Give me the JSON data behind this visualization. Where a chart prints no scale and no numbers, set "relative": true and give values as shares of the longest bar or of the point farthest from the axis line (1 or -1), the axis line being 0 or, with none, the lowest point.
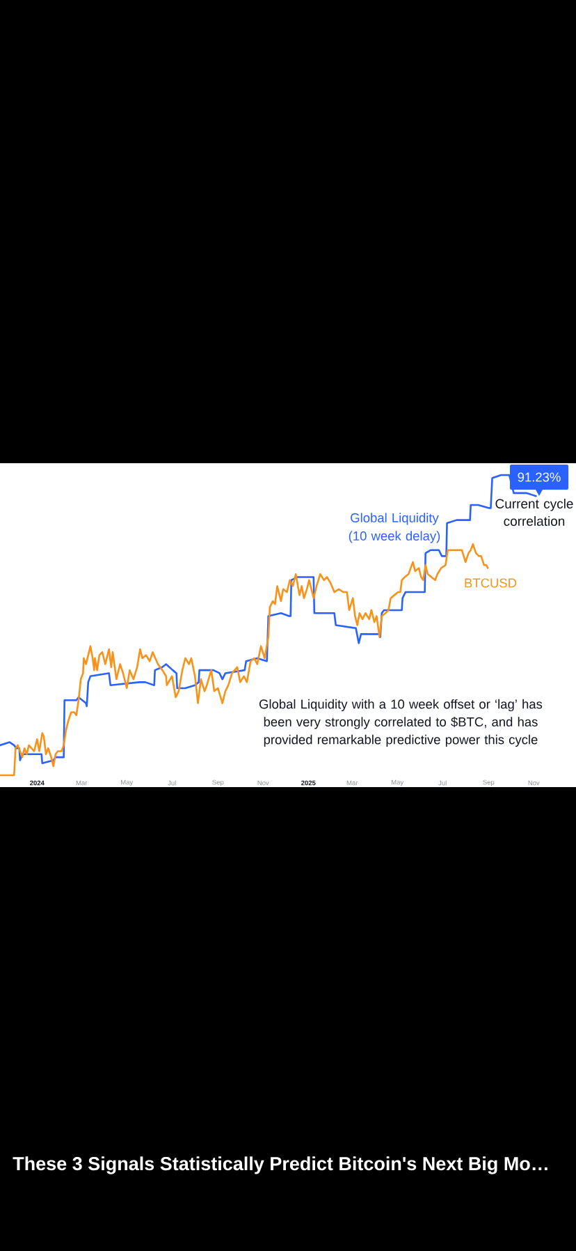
{
  "chart_data": {
    "type": "line",
    "title": "These 3 Signals Statistically Predict Bitcoin's Next Big Mo…",
    "annotations": [
      "91.23%",
      "Current cycle correlation",
      "Global Liquidity with a 10 week offset or ‘lag’ has been very strongly correlated to $BTC, and has provided remarkable predictive power this cycle"
    ],
    "relative": true,
    "xlim": [
      "2023-11-12",
      "2025-12-28"
    ],
    "xticks": [
      {
        "value": "2024-01-01",
        "label": "2024"
      },
      {
        "value": "2024-03-01",
        "label": "Mar"
      },
      {
        "value": "2024-05-01",
        "label": "May"
      },
      {
        "value": "2024-07-01",
        "label": "Jul"
      },
      {
        "value": "2024-09-01",
        "label": "Sep"
      },
      {
        "value": "2024-11-01",
        "label": "Nov"
      },
      {
        "value": "2025-01-01",
        "label": "2025"
      },
      {
        "value": "2025-03-01",
        "label": "Mar"
      },
      {
        "value": "2025-05-01",
        "label": "May"
      },
      {
        "value": "2025-07-01",
        "label": "Jul"
      },
      {
        "value": "2025-09-01",
        "label": "Sep"
      },
      {
        "value": "2025-11-01",
        "label": "Nov"
      }
    ],
    "series": [
      {
        "name": "Global Liquidity (10 week delay)",
        "color": "#2962ff",
        "x": [
          "2023-11-12",
          "2023-11-25",
          "2023-12-01",
          "2023-12-04",
          "2023-12-08",
          "2023-12-09",
          "2023-12-12",
          "2023-12-26",
          "2024-01-07",
          "2024-01-08",
          "2024-01-23",
          "2024-01-26",
          "2024-02-06",
          "2024-02-07",
          "2024-02-23",
          "2024-02-26",
          "2024-03-07",
          "2024-03-08",
          "2024-03-10",
          "2024-03-13",
          "2024-04-07",
          "2024-04-09",
          "2024-05-18",
          "2024-05-26",
          "2024-06-07",
          "2024-06-08",
          "2024-06-18",
          "2024-06-23",
          "2024-07-02",
          "2024-07-07",
          "2024-07-08",
          "2024-07-19",
          "2024-08-01",
          "2024-08-06",
          "2024-08-07",
          "2024-08-26",
          "2024-09-03",
          "2024-09-07",
          "2024-09-11",
          "2024-10-07",
          "2024-10-09",
          "2024-10-24",
          "2024-11-06",
          "2024-11-08",
          "2024-11-25",
          "2024-12-06",
          "2024-12-08",
          "2024-12-09",
          "2024-12-17",
          "2025-01-08",
          "2025-01-09",
          "2025-02-05",
          "2025-02-07",
          "2025-03-06",
          "2025-03-10",
          "2025-03-13",
          "2025-04-07",
          "2025-04-08",
          "2025-04-10",
          "2025-04-13",
          "2025-05-07",
          "2025-05-08",
          "2025-05-12",
          "2025-06-07",
          "2025-06-08",
          "2025-06-15",
          "2025-06-26",
          "2025-06-30",
          "2025-07-06",
          "2025-07-07",
          "2025-07-20",
          "2025-08-07",
          "2025-08-08",
          "2025-08-18",
          "2025-09-02",
          "2025-09-04",
          "2025-09-06",
          "2025-09-18",
          "2025-09-29",
          "2025-10-05",
          "2025-10-22",
          "2025-11-04"
        ],
        "values": [
          0.1,
          0.11,
          0.1,
          0.09,
          0.09,
          0.05,
          0.07,
          0.07,
          0.07,
          0.04,
          0.05,
          0.06,
          0.06,
          0.25,
          0.25,
          0.26,
          0.24,
          0.23,
          0.31,
          0.33,
          0.34,
          0.3,
          0.31,
          0.31,
          0.3,
          0.35,
          0.36,
          0.37,
          0.35,
          0.34,
          0.29,
          0.29,
          0.3,
          0.31,
          0.35,
          0.35,
          0.34,
          0.32,
          0.34,
          0.35,
          0.38,
          0.39,
          0.38,
          0.53,
          0.54,
          0.53,
          0.53,
          0.65,
          0.66,
          0.66,
          0.54,
          0.54,
          0.5,
          0.49,
          0.44,
          0.47,
          0.47,
          0.46,
          0.54,
          0.55,
          0.55,
          0.59,
          0.61,
          0.61,
          0.74,
          0.75,
          0.75,
          0.73,
          0.73,
          0.84,
          0.85,
          0.85,
          0.9,
          0.9,
          0.89,
          0.89,
          0.99,
          1.0,
          1.0,
          0.94,
          0.94,
          0.93
        ]
      },
      {
        "name": "BTCUSD",
        "color": "#f7931a",
        "x": [
          "2023-11-12",
          "2023-11-22",
          "2023-12-01",
          "2023-12-03",
          "2023-12-06",
          "2023-12-09",
          "2023-12-12",
          "2023-12-15",
          "2023-12-18",
          "2023-12-21",
          "2023-12-28",
          "2024-01-01",
          "2024-01-04",
          "2024-01-08",
          "2024-01-10",
          "2024-01-13",
          "2024-01-16",
          "2024-01-20",
          "2024-01-23",
          "2024-01-26",
          "2024-01-29",
          "2024-02-03",
          "2024-02-06",
          "2024-02-09",
          "2024-02-12",
          "2024-02-16",
          "2024-02-20",
          "2024-02-23",
          "2024-02-26",
          "2024-02-29",
          "2024-03-03",
          "2024-03-04",
          "2024-03-07",
          "2024-03-09",
          "2024-03-13",
          "2024-03-16",
          "2024-03-18",
          "2024-03-19",
          "2024-03-22",
          "2024-03-25",
          "2024-03-29",
          "2024-04-02",
          "2024-04-07",
          "2024-04-10",
          "2024-04-12",
          "2024-04-17",
          "2024-04-22",
          "2024-04-26",
          "2024-05-01",
          "2024-05-05",
          "2024-05-10",
          "2024-05-15",
          "2024-05-19",
          "2024-05-22",
          "2024-05-27",
          "2024-06-01",
          "2024-06-05",
          "2024-06-12",
          "2024-06-18",
          "2024-06-23",
          "2024-06-24",
          "2024-07-01",
          "2024-07-06",
          "2024-07-10",
          "2024-07-15",
          "2024-07-19",
          "2024-07-24",
          "2024-07-27",
          "2024-08-01",
          "2024-08-05",
          "2024-08-09",
          "2024-08-14",
          "2024-08-17",
          "2024-08-23",
          "2024-08-27",
          "2024-09-01",
          "2024-09-07",
          "2024-09-11",
          "2024-09-15",
          "2024-09-20",
          "2024-09-27",
          "2024-10-01",
          "2024-10-06",
          "2024-10-10",
          "2024-10-15",
          "2024-10-20",
          "2024-10-24",
          "2024-10-29",
          "2024-11-03",
          "2024-11-08",
          "2024-11-10",
          "2024-11-14",
          "2024-11-17",
          "2024-11-20",
          "2024-11-25",
          "2024-11-28",
          "2024-12-03",
          "2024-12-07",
          "2024-12-11",
          "2024-12-15",
          "2024-12-20",
          "2024-12-23",
          "2024-12-26",
          "2024-12-30",
          "2025-01-02",
          "2025-01-05",
          "2025-01-08",
          "2025-01-12",
          "2025-01-17",
          "2025-01-22",
          "2025-01-26",
          "2025-01-31",
          "2025-02-05",
          "2025-02-11",
          "2025-02-17",
          "2025-02-22",
          "2025-02-25",
          "2025-03-02",
          "2025-03-05",
          "2025-03-08",
          "2025-03-11",
          "2025-03-15",
          "2025-03-19",
          "2025-03-24",
          "2025-03-27",
          "2025-03-31",
          "2025-04-03",
          "2025-04-07",
          "2025-04-10",
          "2025-04-15",
          "2025-04-19",
          "2025-04-22",
          "2025-04-27",
          "2025-05-02",
          "2025-05-05",
          "2025-05-07",
          "2025-05-11",
          "2025-05-16",
          "2025-05-19",
          "2025-05-22",
          "2025-05-25",
          "2025-05-30",
          "2025-06-02",
          "2025-06-05",
          "2025-06-08",
          "2025-06-11",
          "2025-06-16",
          "2025-06-21",
          "2025-06-24",
          "2025-06-29",
          "2025-07-05",
          "2025-07-08",
          "2025-07-13",
          "2025-07-19",
          "2025-07-24",
          "2025-07-27",
          "2025-08-01",
          "2025-08-05",
          "2025-08-08",
          "2025-08-11",
          "2025-08-15",
          "2025-08-19",
          "2025-08-22",
          "2025-08-26",
          "2025-08-29",
          "2025-08-31"
        ],
        "values": [
          0.0,
          0.0,
          0.0,
          0.09,
          0.1,
          0.08,
          0.06,
          0.09,
          0.07,
          0.1,
          0.08,
          0.12,
          0.08,
          0.14,
          0.13,
          0.07,
          0.09,
          0.06,
          0.03,
          0.07,
          0.08,
          0.08,
          0.1,
          0.15,
          0.18,
          0.21,
          0.21,
          0.2,
          0.25,
          0.32,
          0.34,
          0.39,
          0.37,
          0.39,
          0.43,
          0.39,
          0.35,
          0.39,
          0.35,
          0.4,
          0.41,
          0.37,
          0.42,
          0.36,
          0.41,
          0.32,
          0.37,
          0.34,
          0.29,
          0.35,
          0.32,
          0.36,
          0.42,
          0.39,
          0.4,
          0.38,
          0.41,
          0.37,
          0.35,
          0.33,
          0.3,
          0.33,
          0.26,
          0.28,
          0.35,
          0.39,
          0.37,
          0.39,
          0.33,
          0.24,
          0.32,
          0.28,
          0.3,
          0.35,
          0.28,
          0.29,
          0.24,
          0.28,
          0.3,
          0.34,
          0.36,
          0.31,
          0.33,
          0.31,
          0.38,
          0.39,
          0.37,
          0.43,
          0.39,
          0.46,
          0.56,
          0.58,
          0.57,
          0.63,
          0.58,
          0.62,
          0.61,
          0.65,
          0.63,
          0.67,
          0.6,
          0.63,
          0.59,
          0.62,
          0.65,
          0.62,
          0.59,
          0.63,
          0.67,
          0.65,
          0.66,
          0.64,
          0.61,
          0.62,
          0.61,
          0.61,
          0.55,
          0.59,
          0.53,
          0.5,
          0.54,
          0.52,
          0.54,
          0.52,
          0.55,
          0.51,
          0.53,
          0.46,
          0.53,
          0.54,
          0.55,
          0.59,
          0.6,
          0.61,
          0.61,
          0.65,
          0.66,
          0.67,
          0.69,
          0.71,
          0.68,
          0.69,
          0.66,
          0.65,
          0.7,
          0.67,
          0.66,
          0.65,
          0.67,
          0.69,
          0.7,
          0.75,
          0.75,
          0.75,
          0.75,
          0.75,
          0.71,
          0.74,
          0.75,
          0.77,
          0.74,
          0.73,
          0.73,
          0.7,
          0.7,
          0.69
        ]
      }
    ]
  }
}
